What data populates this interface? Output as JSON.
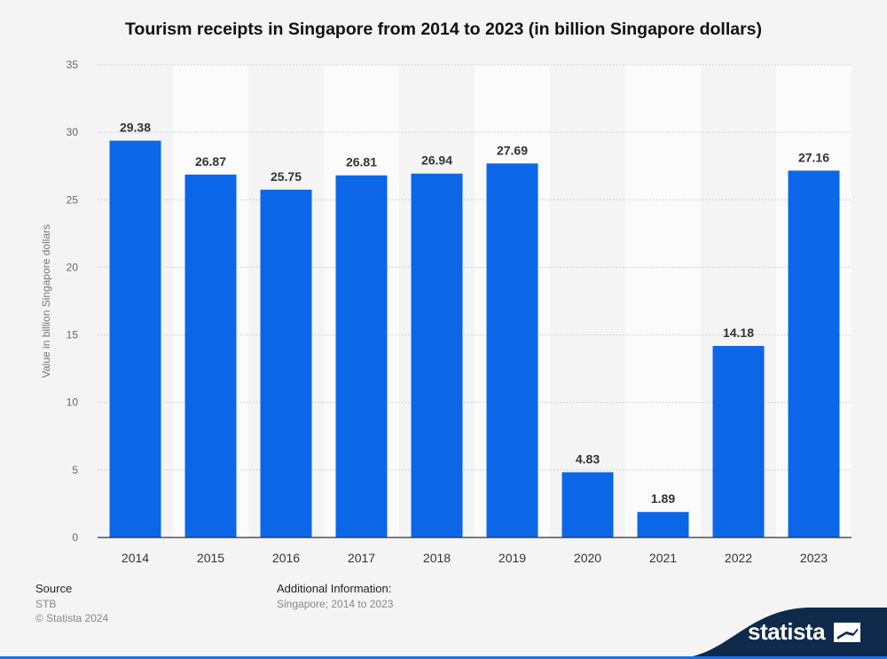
{
  "chart_data": {
    "type": "bar",
    "title": "Tourism receipts in Singapore from 2014 to 2023 (in billion Singapore dollars)",
    "xlabel": "",
    "ylabel": "Value in billion Singapore dollars",
    "categories": [
      "2014",
      "2015",
      "2016",
      "2017",
      "2018",
      "2019",
      "2020",
      "2021",
      "2022",
      "2023"
    ],
    "values": [
      29.38,
      26.87,
      25.75,
      26.81,
      26.94,
      27.69,
      4.83,
      1.89,
      14.18,
      27.16
    ],
    "value_labels": [
      "29.38",
      "26.87",
      "25.75",
      "26.81",
      "26.94",
      "27.69",
      "4.83",
      "1.89",
      "14.18",
      "27.16"
    ],
    "ylim": [
      0,
      35
    ],
    "yticks": [
      "0",
      "5",
      "10",
      "15",
      "20",
      "25",
      "30",
      "35"
    ],
    "grid": true,
    "bar_color": "#0b67e8"
  },
  "footer": {
    "source_heading": "Source",
    "source_value": "STB",
    "copyright": "© Statista 2024",
    "additional_heading": "Additional Information:",
    "additional_value": "Singapore; 2014 to 2023"
  },
  "brand": {
    "name": "statista",
    "logo_icon": "statista-flag-icon",
    "band_color": "#0f2a4a"
  }
}
